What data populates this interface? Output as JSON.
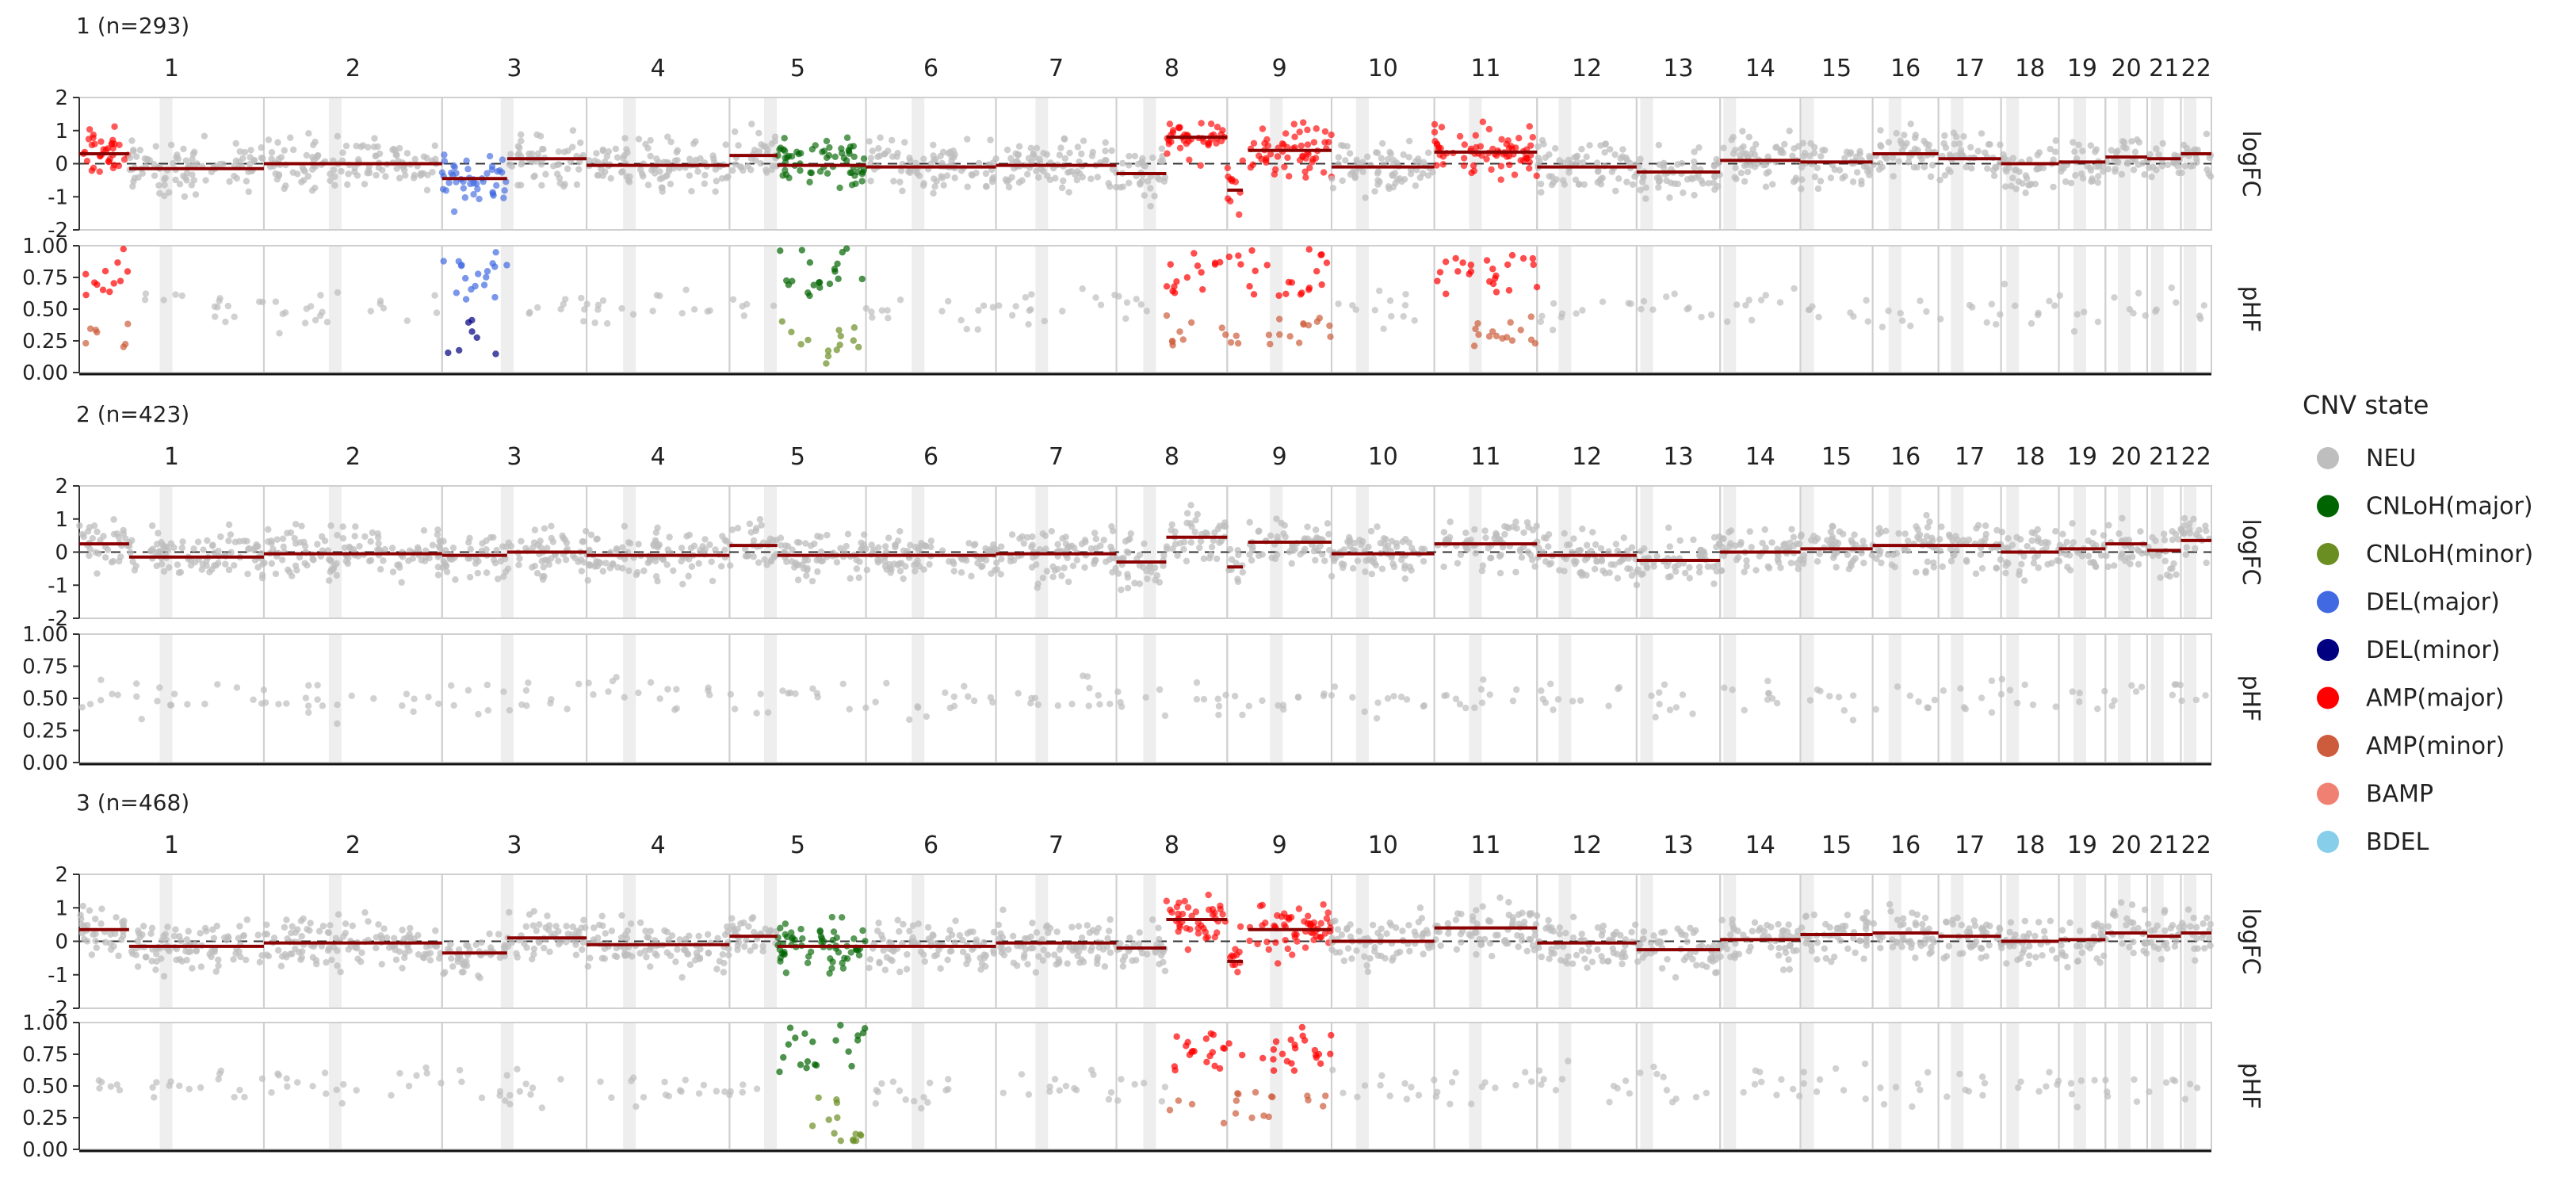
{
  "chart_data": {
    "type": "scatter",
    "chromosomes": [
      "1",
      "2",
      "3",
      "4",
      "5",
      "6",
      "7",
      "8",
      "9",
      "10",
      "11",
      "12",
      "13",
      "14",
      "15",
      "16",
      "17",
      "18",
      "19",
      "20",
      "21",
      "22"
    ],
    "chrom_widths": [
      230,
      222,
      180,
      178,
      170,
      162,
      150,
      138,
      130,
      128,
      128,
      124,
      104,
      100,
      90,
      82,
      78,
      72,
      58,
      52,
      42,
      38
    ],
    "centromere_fraction": [
      0.47,
      0.4,
      0.45,
      0.3,
      0.3,
      0.4,
      0.38,
      0.3,
      0.47,
      0.3,
      0.4,
      0.28,
      0.12,
      0.12,
      0.1,
      0.34,
      0.3,
      0.2,
      0.45,
      0.45,
      0.3,
      0.3
    ],
    "panel_labels": [
      "logFC",
      "pHF"
    ],
    "logFC_ticks": [
      "2",
      "1",
      "0",
      "-1",
      "-2"
    ],
    "logFC_range": [
      -2,
      2
    ],
    "pHF_ticks": [
      "1.00",
      "0.75",
      "0.50",
      "0.25",
      "0.00"
    ],
    "pHF_range": [
      0,
      1
    ],
    "legend": {
      "title": "CNV state",
      "entries": [
        {
          "label": "NEU",
          "color": "#BEBEBE"
        },
        {
          "label": "CNLoH(major)",
          "color": "#006400"
        },
        {
          "label": "CNLoH(minor)",
          "color": "#6B8E23"
        },
        {
          "label": "DEL(major)",
          "color": "#4169E1"
        },
        {
          "label": "DEL(minor)",
          "color": "#000080"
        },
        {
          "label": "AMP(major)",
          "color": "#FF0000"
        },
        {
          "label": "AMP(minor)",
          "color": "#CD5C3C"
        },
        {
          "label": "BAMP",
          "color": "#F08072"
        },
        {
          "label": "BDEL",
          "color": "#87CEEB"
        }
      ]
    },
    "clones": [
      {
        "label": "1 (n=293)",
        "segments": [
          {
            "chr": "1",
            "start": 0.0,
            "end": 0.27,
            "state": "AMP(major)",
            "mean": 0.3
          },
          {
            "chr": "1",
            "start": 0.27,
            "end": 1.0,
            "state": "NEU",
            "mean": -0.15
          },
          {
            "chr": "2",
            "start": 0.0,
            "end": 1.0,
            "state": "NEU",
            "mean": 0.0
          },
          {
            "chr": "3",
            "start": 0.0,
            "end": 0.45,
            "state": "DEL(major)",
            "mean": -0.45
          },
          {
            "chr": "3",
            "start": 0.45,
            "end": 1.0,
            "state": "NEU",
            "mean": 0.15
          },
          {
            "chr": "4",
            "start": 0.0,
            "end": 1.0,
            "state": "NEU",
            "mean": -0.05
          },
          {
            "chr": "5",
            "start": 0.0,
            "end": 0.35,
            "state": "NEU",
            "mean": 0.25
          },
          {
            "chr": "5",
            "start": 0.35,
            "end": 1.0,
            "state": "CNLoH(major)",
            "mean": -0.05
          },
          {
            "chr": "6",
            "start": 0.0,
            "end": 1.0,
            "state": "NEU",
            "mean": -0.1
          },
          {
            "chr": "7",
            "start": 0.0,
            "end": 1.0,
            "state": "NEU",
            "mean": -0.05
          },
          {
            "chr": "8",
            "start": 0.0,
            "end": 0.45,
            "state": "NEU",
            "mean": -0.3
          },
          {
            "chr": "8",
            "start": 0.45,
            "end": 1.0,
            "state": "AMP(major)",
            "mean": 0.8
          },
          {
            "chr": "9",
            "start": 0.0,
            "end": 0.15,
            "state": "AMP(major)",
            "mean": -0.8
          },
          {
            "chr": "9",
            "start": 0.2,
            "end": 1.0,
            "state": "AMP(major)",
            "mean": 0.4
          },
          {
            "chr": "10",
            "start": 0.0,
            "end": 1.0,
            "state": "NEU",
            "mean": -0.1
          },
          {
            "chr": "11",
            "start": 0.0,
            "end": 1.0,
            "state": "AMP(major)",
            "mean": 0.35
          },
          {
            "chr": "12",
            "start": 0.0,
            "end": 1.0,
            "state": "NEU",
            "mean": -0.1
          },
          {
            "chr": "13",
            "start": 0.0,
            "end": 1.0,
            "state": "NEU",
            "mean": -0.25
          },
          {
            "chr": "14",
            "start": 0.0,
            "end": 1.0,
            "state": "NEU",
            "mean": 0.1
          },
          {
            "chr": "15",
            "start": 0.0,
            "end": 1.0,
            "state": "NEU",
            "mean": 0.05
          },
          {
            "chr": "16",
            "start": 0.0,
            "end": 1.0,
            "state": "NEU",
            "mean": 0.3
          },
          {
            "chr": "17",
            "start": 0.0,
            "end": 1.0,
            "state": "NEU",
            "mean": 0.15
          },
          {
            "chr": "18",
            "start": 0.0,
            "end": 1.0,
            "state": "NEU",
            "mean": 0.0
          },
          {
            "chr": "19",
            "start": 0.0,
            "end": 1.0,
            "state": "NEU",
            "mean": 0.05
          },
          {
            "chr": "20",
            "start": 0.0,
            "end": 1.0,
            "state": "NEU",
            "mean": 0.2
          },
          {
            "chr": "21",
            "start": 0.0,
            "end": 1.0,
            "state": "NEU",
            "mean": 0.15
          },
          {
            "chr": "22",
            "start": 0.0,
            "end": 1.0,
            "state": "NEU",
            "mean": 0.3
          }
        ]
      },
      {
        "label": "2 (n=423)",
        "segments": [
          {
            "chr": "1",
            "start": 0.0,
            "end": 0.27,
            "state": "NEU",
            "mean": 0.25
          },
          {
            "chr": "1",
            "start": 0.27,
            "end": 1.0,
            "state": "NEU",
            "mean": -0.15
          },
          {
            "chr": "2",
            "start": 0.0,
            "end": 1.0,
            "state": "NEU",
            "mean": -0.05
          },
          {
            "chr": "3",
            "start": 0.0,
            "end": 0.45,
            "state": "NEU",
            "mean": -0.1
          },
          {
            "chr": "3",
            "start": 0.45,
            "end": 1.0,
            "state": "NEU",
            "mean": 0.0
          },
          {
            "chr": "4",
            "start": 0.0,
            "end": 1.0,
            "state": "NEU",
            "mean": -0.1
          },
          {
            "chr": "5",
            "start": 0.0,
            "end": 0.35,
            "state": "NEU",
            "mean": 0.2
          },
          {
            "chr": "5",
            "start": 0.35,
            "end": 1.0,
            "state": "NEU",
            "mean": -0.1
          },
          {
            "chr": "6",
            "start": 0.0,
            "end": 1.0,
            "state": "NEU",
            "mean": -0.1
          },
          {
            "chr": "7",
            "start": 0.0,
            "end": 1.0,
            "state": "NEU",
            "mean": -0.05
          },
          {
            "chr": "8",
            "start": 0.0,
            "end": 0.45,
            "state": "NEU",
            "mean": -0.3
          },
          {
            "chr": "8",
            "start": 0.45,
            "end": 1.0,
            "state": "NEU",
            "mean": 0.45
          },
          {
            "chr": "9",
            "start": 0.0,
            "end": 0.15,
            "state": "NEU",
            "mean": -0.45
          },
          {
            "chr": "9",
            "start": 0.2,
            "end": 1.0,
            "state": "NEU",
            "mean": 0.3
          },
          {
            "chr": "10",
            "start": 0.0,
            "end": 1.0,
            "state": "NEU",
            "mean": -0.05
          },
          {
            "chr": "11",
            "start": 0.0,
            "end": 1.0,
            "state": "NEU",
            "mean": 0.25
          },
          {
            "chr": "12",
            "start": 0.0,
            "end": 1.0,
            "state": "NEU",
            "mean": -0.1
          },
          {
            "chr": "13",
            "start": 0.0,
            "end": 1.0,
            "state": "NEU",
            "mean": -0.25
          },
          {
            "chr": "14",
            "start": 0.0,
            "end": 1.0,
            "state": "NEU",
            "mean": 0.0
          },
          {
            "chr": "15",
            "start": 0.0,
            "end": 1.0,
            "state": "NEU",
            "mean": 0.1
          },
          {
            "chr": "16",
            "start": 0.0,
            "end": 1.0,
            "state": "NEU",
            "mean": 0.2
          },
          {
            "chr": "17",
            "start": 0.0,
            "end": 1.0,
            "state": "NEU",
            "mean": 0.2
          },
          {
            "chr": "18",
            "start": 0.0,
            "end": 1.0,
            "state": "NEU",
            "mean": 0.0
          },
          {
            "chr": "19",
            "start": 0.0,
            "end": 1.0,
            "state": "NEU",
            "mean": 0.1
          },
          {
            "chr": "20",
            "start": 0.0,
            "end": 1.0,
            "state": "NEU",
            "mean": 0.25
          },
          {
            "chr": "21",
            "start": 0.0,
            "end": 1.0,
            "state": "NEU",
            "mean": 0.05
          },
          {
            "chr": "22",
            "start": 0.0,
            "end": 1.0,
            "state": "NEU",
            "mean": 0.35
          }
        ]
      },
      {
        "label": "3 (n=468)",
        "segments": [
          {
            "chr": "1",
            "start": 0.0,
            "end": 0.27,
            "state": "NEU",
            "mean": 0.35
          },
          {
            "chr": "1",
            "start": 0.27,
            "end": 1.0,
            "state": "NEU",
            "mean": -0.15
          },
          {
            "chr": "2",
            "start": 0.0,
            "end": 1.0,
            "state": "NEU",
            "mean": -0.05
          },
          {
            "chr": "3",
            "start": 0.0,
            "end": 0.45,
            "state": "NEU",
            "mean": -0.35
          },
          {
            "chr": "3",
            "start": 0.45,
            "end": 1.0,
            "state": "NEU",
            "mean": 0.1
          },
          {
            "chr": "4",
            "start": 0.0,
            "end": 1.0,
            "state": "NEU",
            "mean": -0.1
          },
          {
            "chr": "5",
            "start": 0.0,
            "end": 0.35,
            "state": "NEU",
            "mean": 0.15
          },
          {
            "chr": "5",
            "start": 0.35,
            "end": 1.0,
            "state": "CNLoH(major)",
            "mean": -0.15
          },
          {
            "chr": "6",
            "start": 0.0,
            "end": 1.0,
            "state": "NEU",
            "mean": -0.15
          },
          {
            "chr": "7",
            "start": 0.0,
            "end": 1.0,
            "state": "NEU",
            "mean": -0.05
          },
          {
            "chr": "8",
            "start": 0.0,
            "end": 0.45,
            "state": "NEU",
            "mean": -0.2
          },
          {
            "chr": "8",
            "start": 0.45,
            "end": 1.0,
            "state": "AMP(major)",
            "mean": 0.65
          },
          {
            "chr": "9",
            "start": 0.0,
            "end": 0.15,
            "state": "AMP(major)",
            "mean": -0.6
          },
          {
            "chr": "9",
            "start": 0.2,
            "end": 1.0,
            "state": "AMP(major)",
            "mean": 0.35
          },
          {
            "chr": "10",
            "start": 0.0,
            "end": 1.0,
            "state": "NEU",
            "mean": 0.0
          },
          {
            "chr": "11",
            "start": 0.0,
            "end": 1.0,
            "state": "NEU",
            "mean": 0.4
          },
          {
            "chr": "12",
            "start": 0.0,
            "end": 1.0,
            "state": "NEU",
            "mean": -0.05
          },
          {
            "chr": "13",
            "start": 0.0,
            "end": 1.0,
            "state": "NEU",
            "mean": -0.25
          },
          {
            "chr": "14",
            "start": 0.0,
            "end": 1.0,
            "state": "NEU",
            "mean": 0.05
          },
          {
            "chr": "15",
            "start": 0.0,
            "end": 1.0,
            "state": "NEU",
            "mean": 0.2
          },
          {
            "chr": "16",
            "start": 0.0,
            "end": 1.0,
            "state": "NEU",
            "mean": 0.25
          },
          {
            "chr": "17",
            "start": 0.0,
            "end": 1.0,
            "state": "NEU",
            "mean": 0.15
          },
          {
            "chr": "18",
            "start": 0.0,
            "end": 1.0,
            "state": "NEU",
            "mean": 0.0
          },
          {
            "chr": "19",
            "start": 0.0,
            "end": 1.0,
            "state": "NEU",
            "mean": 0.05
          },
          {
            "chr": "20",
            "start": 0.0,
            "end": 1.0,
            "state": "NEU",
            "mean": 0.25
          },
          {
            "chr": "21",
            "start": 0.0,
            "end": 1.0,
            "state": "NEU",
            "mean": 0.15
          },
          {
            "chr": "22",
            "start": 0.0,
            "end": 1.0,
            "state": "NEU",
            "mean": 0.25
          }
        ]
      }
    ]
  }
}
